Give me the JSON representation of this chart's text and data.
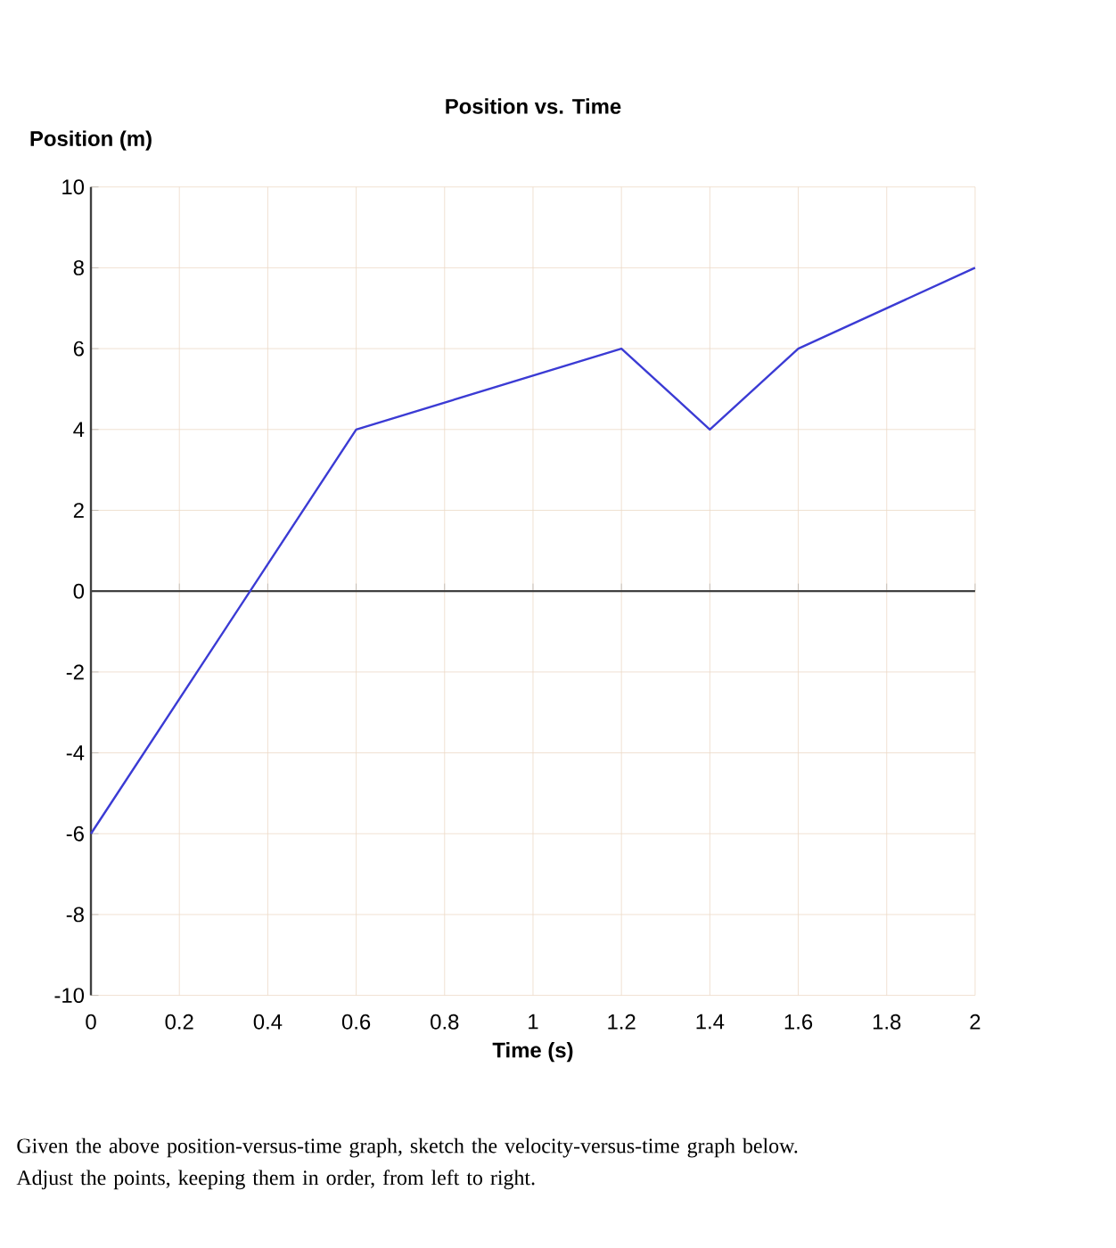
{
  "chart_data": {
    "type": "line",
    "title": "Position vs. Time",
    "xlabel": "Time (s)",
    "ylabel": "Position (m)",
    "x": [
      0,
      0.6,
      1.2,
      1.4,
      1.6,
      2
    ],
    "values": [
      -6,
      4,
      6,
      4,
      6,
      8
    ],
    "color": "#3b3bd4",
    "xlim": [
      0,
      2
    ],
    "ylim": [
      -10,
      10
    ],
    "xticks": [
      0,
      0.2,
      0.4,
      0.6,
      0.8,
      1,
      1.2,
      1.4,
      1.6,
      1.8,
      2
    ],
    "yticks": [
      -10,
      -8,
      -6,
      -4,
      -2,
      0,
      2,
      4,
      6,
      8,
      10
    ],
    "grid": true,
    "marker": "none",
    "line_style": "solid",
    "annotations": [
      "Given the above position-versus-time graph, sketch the velocity-versus-time graph below.",
      "Adjust the points, keeping them in order, from left to right."
    ]
  }
}
